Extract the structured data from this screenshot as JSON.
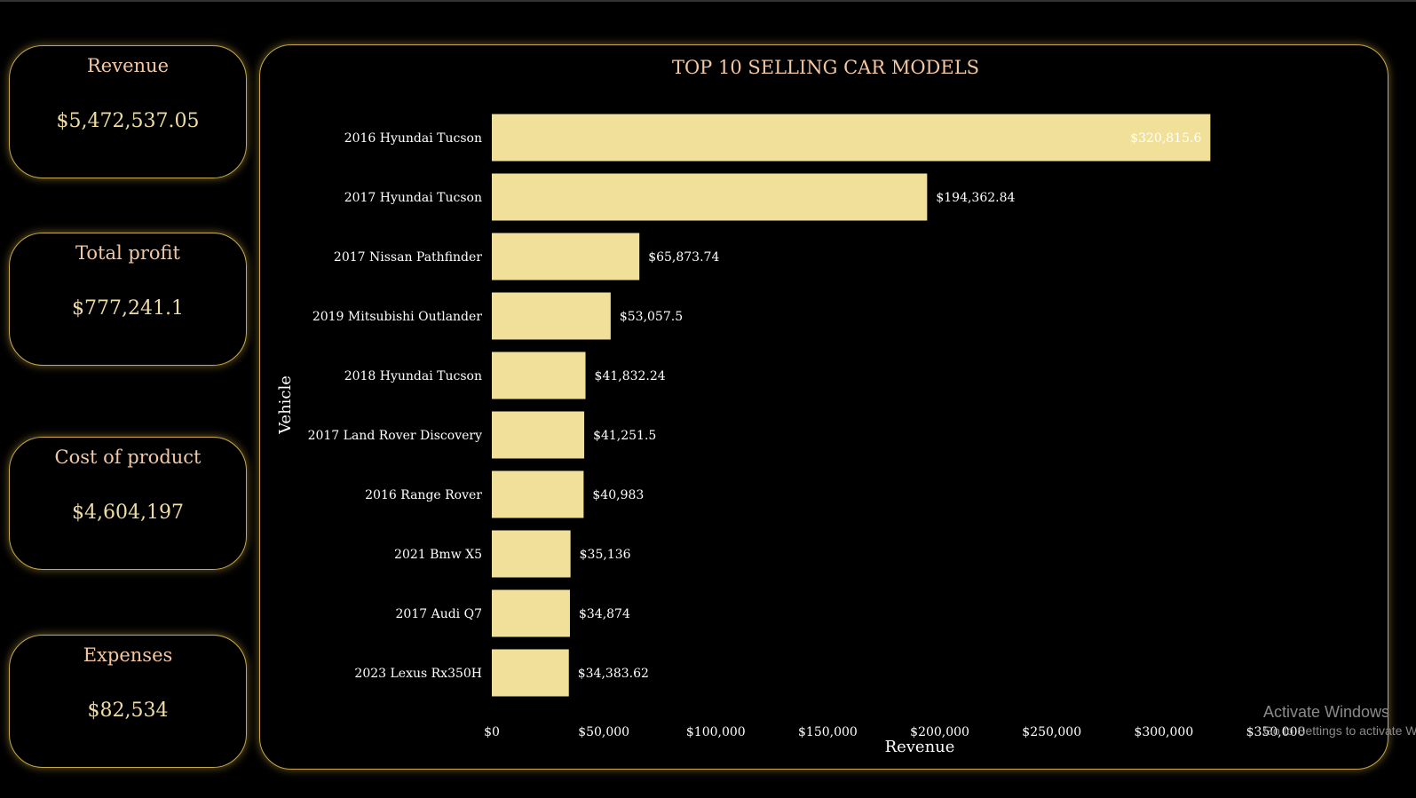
{
  "kpis": {
    "revenue": {
      "label": "Revenue",
      "value": "$5,472,537.05"
    },
    "profit": {
      "label": "Total profit",
      "value": "$777,241.1"
    },
    "cost": {
      "label": "Cost of product",
      "value": "$4,604,197"
    },
    "expenses": {
      "label": "Expenses",
      "value": "$82,534"
    }
  },
  "chart_data": {
    "type": "bar",
    "orientation": "horizontal",
    "title": "TOP 10 SELLING CAR MODELS",
    "xlabel": "Revenue",
    "ylabel": "Vehicle",
    "categories": [
      "2016 Hyundai Tucson",
      "2017 Hyundai Tucson",
      "2017 Nissan Pathfinder",
      "2019 Mitsubishi Outlander",
      "2018 Hyundai Tucson",
      "2017 Land Rover Discovery",
      "2016 Range Rover",
      "2021 Bmw X5",
      "2017 Audi Q7",
      "2023 Lexus Rx350H"
    ],
    "values": [
      320815.6,
      194362.84,
      65873.74,
      53057.5,
      41832.24,
      41251.5,
      40983,
      35136,
      34874,
      34383.62
    ],
    "value_labels": [
      "$320,815.6",
      "$194,362.84",
      "$65,873.74",
      "$53,057.5",
      "$41,832.24",
      "$41,251.5",
      "$40,983",
      "$35,136",
      "$34,874",
      "$34,383.62"
    ],
    "xlim": [
      0,
      350000
    ],
    "x_ticks": [
      0,
      50000,
      100000,
      150000,
      200000,
      250000,
      300000,
      350000
    ],
    "x_tick_labels": [
      "$0",
      "$50,000",
      "$100,000",
      "$150,000",
      "$200,000",
      "$250,000",
      "$300,000",
      "$350,000"
    ],
    "grid": false,
    "legend": "none",
    "bar_color": "#f0e09a",
    "text_color": "#ffffff",
    "title_color": "#f3c7a2"
  },
  "watermark": {
    "line1": "Activate Windows",
    "line2": "Go to Settings to activate Windows."
  }
}
